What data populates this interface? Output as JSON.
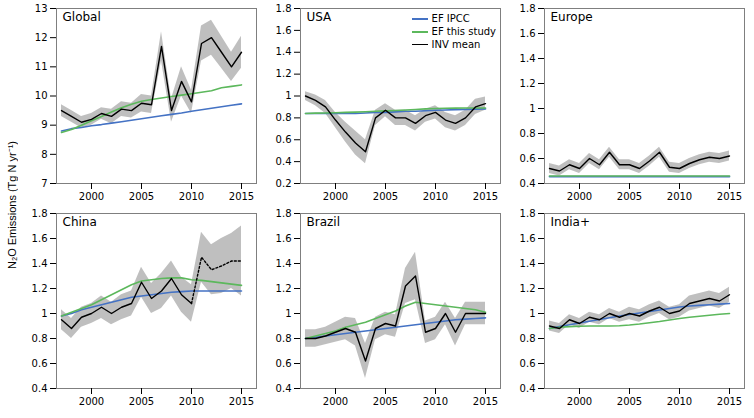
{
  "ylabel": "N₂O Emissions (Tg N yr⁻¹)",
  "chart_data": [
    {
      "type": "line",
      "title": "Global",
      "x": [
        1997,
        1998,
        1999,
        2000,
        2001,
        2002,
        2003,
        2004,
        2005,
        2006,
        2007,
        2008,
        2009,
        2010,
        2011,
        2012,
        2013,
        2014,
        2015
      ],
      "xlim": [
        1996.5,
        2016.5
      ],
      "xticks": [
        2000,
        2005,
        2010,
        2015
      ],
      "ylim": [
        7,
        13
      ],
      "yticks": [
        7,
        8,
        9,
        10,
        11,
        12,
        13
      ],
      "series": [
        {
          "name": "EF IPCC",
          "color": "#4472C4",
          "line_style": "solid",
          "values": [
            8.8,
            8.88,
            8.92,
            8.98,
            9.02,
            9.07,
            9.12,
            9.17,
            9.22,
            9.27,
            9.32,
            9.37,
            9.42,
            9.48,
            9.53,
            9.58,
            9.63,
            9.68,
            9.73
          ]
        },
        {
          "name": "EF this study",
          "color": "#5CB85C",
          "line_style": "solid",
          "values": [
            8.75,
            8.85,
            9.0,
            9.15,
            9.3,
            9.45,
            9.6,
            9.72,
            9.82,
            9.88,
            9.93,
            9.98,
            10.03,
            10.08,
            10.13,
            10.18,
            10.28,
            10.33,
            10.38
          ]
        },
        {
          "name": "INV mean",
          "color": "black",
          "line_style": "solid",
          "values": [
            9.5,
            9.3,
            9.1,
            9.2,
            9.4,
            9.3,
            9.55,
            9.5,
            9.75,
            9.7,
            11.7,
            9.5,
            10.5,
            9.8,
            11.8,
            12.0,
            11.5,
            11.0,
            11.5
          ],
          "std": [
            0.2,
            0.2,
            0.2,
            0.2,
            0.2,
            0.25,
            0.25,
            0.25,
            0.3,
            0.3,
            0.5,
            0.4,
            0.5,
            0.4,
            0.6,
            0.6,
            0.55,
            0.5,
            0.55
          ]
        }
      ]
    },
    {
      "type": "line",
      "title": "USA",
      "legend": "upper right",
      "x": [
        1997,
        1998,
        1999,
        2000,
        2001,
        2002,
        2003,
        2004,
        2005,
        2006,
        2007,
        2008,
        2009,
        2010,
        2011,
        2012,
        2013,
        2014,
        2015
      ],
      "xlim": [
        1996.5,
        2016.5
      ],
      "xticks": [
        2000,
        2005,
        2010,
        2015
      ],
      "ylim": [
        0.2,
        1.8
      ],
      "yticks": [
        0.2,
        0.4,
        0.6,
        0.8,
        1.0,
        1.2,
        1.4,
        1.6,
        1.8
      ],
      "series": [
        {
          "name": "EF IPCC",
          "color": "#4472C4",
          "line_style": "solid",
          "values": [
            0.84,
            0.84,
            0.84,
            0.84,
            0.84,
            0.84,
            0.845,
            0.85,
            0.85,
            0.855,
            0.86,
            0.86,
            0.865,
            0.87,
            0.872,
            0.875,
            0.878,
            0.88,
            0.882
          ]
        },
        {
          "name": "EF this study",
          "color": "#5CB85C",
          "line_style": "solid",
          "values": [
            0.84,
            0.843,
            0.845,
            0.847,
            0.85,
            0.853,
            0.856,
            0.86,
            0.864,
            0.868,
            0.872,
            0.876,
            0.882,
            0.886,
            0.888,
            0.889,
            0.89,
            0.89,
            0.89
          ]
        },
        {
          "name": "INV mean",
          "color": "black",
          "line_style": "solid",
          "values": [
            1.0,
            0.96,
            0.9,
            0.78,
            0.67,
            0.57,
            0.49,
            0.8,
            0.87,
            0.8,
            0.8,
            0.75,
            0.82,
            0.85,
            0.78,
            0.75,
            0.8,
            0.9,
            0.93
          ],
          "std": [
            0.04,
            0.05,
            0.06,
            0.07,
            0.09,
            0.11,
            0.11,
            0.07,
            0.06,
            0.07,
            0.07,
            0.07,
            0.06,
            0.06,
            0.07,
            0.07,
            0.07,
            0.07,
            0.06
          ]
        }
      ]
    },
    {
      "type": "line",
      "title": "Europe",
      "x": [
        1997,
        1998,
        1999,
        2000,
        2001,
        2002,
        2003,
        2004,
        2005,
        2006,
        2007,
        2008,
        2009,
        2010,
        2011,
        2012,
        2013,
        2014,
        2015
      ],
      "xlim": [
        1996.5,
        2016.5
      ],
      "xticks": [
        2000,
        2005,
        2010,
        2015
      ],
      "ylim": [
        0.4,
        1.8
      ],
      "yticks": [
        0.4,
        0.6,
        0.8,
        1.0,
        1.2,
        1.4,
        1.6,
        1.8
      ],
      "series": [
        {
          "name": "EF IPCC",
          "color": "#4472C4",
          "line_style": "solid",
          "values": [
            0.455,
            0.455,
            0.455,
            0.455,
            0.455,
            0.455,
            0.455,
            0.455,
            0.455,
            0.455,
            0.455,
            0.455,
            0.455,
            0.455,
            0.455,
            0.455,
            0.455,
            0.455,
            0.455
          ]
        },
        {
          "name": "EF this study",
          "color": "#5CB85C",
          "line_style": "solid",
          "values": [
            0.46,
            0.46,
            0.46,
            0.46,
            0.46,
            0.46,
            0.46,
            0.46,
            0.46,
            0.46,
            0.46,
            0.46,
            0.46,
            0.46,
            0.46,
            0.46,
            0.46,
            0.46,
            0.46
          ]
        },
        {
          "name": "INV mean",
          "color": "black",
          "line_style": "solid",
          "values": [
            0.52,
            0.5,
            0.55,
            0.52,
            0.6,
            0.55,
            0.65,
            0.55,
            0.55,
            0.52,
            0.58,
            0.65,
            0.53,
            0.52,
            0.56,
            0.59,
            0.61,
            0.6,
            0.62
          ],
          "std": [
            0.04,
            0.04,
            0.04,
            0.04,
            0.04,
            0.04,
            0.04,
            0.04,
            0.04,
            0.04,
            0.04,
            0.04,
            0.04,
            0.04,
            0.04,
            0.04,
            0.04,
            0.04,
            0.04
          ]
        }
      ]
    },
    {
      "type": "line",
      "title": "China",
      "x": [
        1997,
        1998,
        1999,
        2000,
        2001,
        2002,
        2003,
        2004,
        2005,
        2006,
        2007,
        2008,
        2009,
        2010,
        2011,
        2012,
        2013,
        2014,
        2015
      ],
      "xlim": [
        1996.5,
        2016.5
      ],
      "xticks": [
        2000,
        2005,
        2010,
        2015
      ],
      "ylim": [
        0.4,
        1.8
      ],
      "yticks": [
        0.4,
        0.6,
        0.8,
        1.0,
        1.2,
        1.4,
        1.6,
        1.8
      ],
      "series": [
        {
          "name": "EF IPCC",
          "color": "#4472C4",
          "line_style": "solid",
          "values": [
            0.98,
            1.0,
            1.03,
            1.05,
            1.07,
            1.09,
            1.11,
            1.13,
            1.14,
            1.15,
            1.16,
            1.17,
            1.175,
            1.18,
            1.18,
            1.18,
            1.18,
            1.18,
            1.18
          ]
        },
        {
          "name": "EF this study",
          "color": "#5CB85C",
          "line_style": "solid",
          "values": [
            0.98,
            1.01,
            1.04,
            1.07,
            1.11,
            1.15,
            1.19,
            1.23,
            1.26,
            1.27,
            1.28,
            1.285,
            1.285,
            1.27,
            1.265,
            1.255,
            1.245,
            1.235,
            1.225
          ]
        },
        {
          "name": "INV mean",
          "color": "black",
          "line_style": "solid",
          "values": [
            0.95,
            0.88,
            0.97,
            1.0,
            1.05,
            1.0,
            1.05,
            1.08,
            1.25,
            1.12,
            1.18,
            1.28,
            1.15,
            1.08,
            null,
            null,
            null,
            null,
            null
          ],
          "std": [
            0.08,
            0.08,
            0.08,
            0.08,
            0.09,
            0.09,
            0.1,
            0.1,
            0.12,
            0.12,
            0.14,
            0.14,
            0.14,
            0.15,
            null,
            null,
            null,
            null,
            null
          ]
        },
        {
          "name": "INV mean",
          "color": "black",
          "line_style": "dotted",
          "values": [
            null,
            null,
            null,
            null,
            null,
            null,
            null,
            null,
            null,
            null,
            null,
            null,
            null,
            1.08,
            1.45,
            1.35,
            1.38,
            1.42,
            1.42
          ],
          "std": [
            null,
            null,
            null,
            null,
            null,
            null,
            null,
            null,
            null,
            null,
            null,
            null,
            null,
            0.15,
            0.2,
            0.2,
            0.22,
            0.22,
            0.28
          ]
        }
      ]
    },
    {
      "type": "line",
      "title": "Brazil",
      "x": [
        1997,
        1998,
        1999,
        2000,
        2001,
        2002,
        2003,
        2004,
        2005,
        2006,
        2007,
        2008,
        2009,
        2010,
        2011,
        2012,
        2013,
        2014,
        2015
      ],
      "xlim": [
        1996.5,
        2016.5
      ],
      "xticks": [
        2000,
        2005,
        2010,
        2015
      ],
      "ylim": [
        0.4,
        1.8
      ],
      "yticks": [
        0.4,
        0.6,
        0.8,
        1.0,
        1.2,
        1.4,
        1.6,
        1.8
      ],
      "series": [
        {
          "name": "EF IPCC",
          "color": "#4472C4",
          "line_style": "solid",
          "values": [
            0.8,
            0.81,
            0.82,
            0.83,
            0.84,
            0.85,
            0.86,
            0.87,
            0.88,
            0.89,
            0.9,
            0.91,
            0.92,
            0.93,
            0.94,
            0.95,
            0.955,
            0.96,
            0.965
          ]
        },
        {
          "name": "EF this study",
          "color": "#5CB85C",
          "line_style": "solid",
          "values": [
            0.8,
            0.82,
            0.84,
            0.86,
            0.89,
            0.91,
            0.93,
            0.96,
            0.99,
            1.02,
            1.06,
            1.09,
            1.08,
            1.07,
            1.06,
            1.05,
            1.04,
            1.03,
            1.01
          ]
        },
        {
          "name": "INV mean",
          "color": "black",
          "line_style": "solid",
          "values": [
            0.8,
            0.8,
            0.82,
            0.85,
            0.88,
            0.85,
            0.62,
            0.88,
            0.92,
            0.9,
            1.22,
            1.3,
            0.85,
            0.88,
            1.0,
            0.85,
            1.0,
            1.0,
            1.0
          ],
          "std": [
            0.07,
            0.07,
            0.07,
            0.08,
            0.09,
            0.11,
            0.14,
            0.09,
            0.09,
            0.09,
            0.14,
            0.19,
            0.09,
            0.09,
            0.09,
            0.11,
            0.09,
            0.09,
            0.09
          ]
        }
      ]
    },
    {
      "type": "line",
      "title": "India+",
      "x": [
        1997,
        1998,
        1999,
        2000,
        2001,
        2002,
        2003,
        2004,
        2005,
        2006,
        2007,
        2008,
        2009,
        2010,
        2011,
        2012,
        2013,
        2014,
        2015
      ],
      "xlim": [
        1996.5,
        2016.5
      ],
      "xticks": [
        2000,
        2005,
        2010,
        2015
      ],
      "ylim": [
        0.4,
        1.8
      ],
      "yticks": [
        0.4,
        0.6,
        0.8,
        1.0,
        1.2,
        1.4,
        1.6,
        1.8
      ],
      "series": [
        {
          "name": "EF IPCC",
          "color": "#4472C4",
          "line_style": "solid",
          "values": [
            0.88,
            0.895,
            0.91,
            0.924,
            0.938,
            0.952,
            0.966,
            0.98,
            0.992,
            1.004,
            1.016,
            1.028,
            1.04,
            1.052,
            1.06,
            1.065,
            1.07,
            1.075,
            1.08
          ]
        },
        {
          "name": "EF this study",
          "color": "#5CB85C",
          "line_style": "solid",
          "values": [
            0.88,
            0.89,
            0.895,
            0.898,
            0.9,
            0.9,
            0.9,
            0.902,
            0.908,
            0.916,
            0.926,
            0.936,
            0.948,
            0.96,
            0.97,
            0.978,
            0.986,
            0.994,
            1.0
          ]
        },
        {
          "name": "INV mean",
          "color": "black",
          "line_style": "solid",
          "values": [
            0.9,
            0.88,
            0.95,
            0.92,
            0.97,
            0.95,
            1.0,
            0.97,
            1.0,
            0.98,
            1.02,
            1.05,
            1.0,
            1.02,
            1.08,
            1.1,
            1.12,
            1.1,
            1.15
          ],
          "std": [
            0.04,
            0.04,
            0.04,
            0.04,
            0.04,
            0.04,
            0.04,
            0.04,
            0.05,
            0.05,
            0.05,
            0.05,
            0.05,
            0.05,
            0.06,
            0.06,
            0.06,
            0.06,
            0.06
          ]
        }
      ]
    }
  ]
}
